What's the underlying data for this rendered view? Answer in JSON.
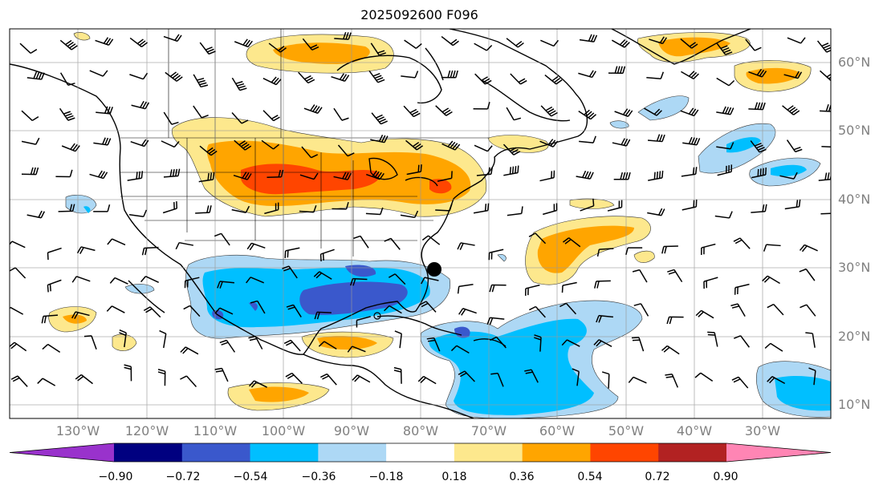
{
  "title": "2025092600 F096",
  "map": {
    "projection": "PlateCarree",
    "lon_range": [
      -142,
      -22
    ],
    "lat_range": [
      8,
      65
    ],
    "lat_labels": [
      "60°N",
      "50°N",
      "40°N",
      "30°N",
      "20°N",
      "10°N"
    ],
    "lon_labels": [
      "130°W",
      "120°W",
      "110°W",
      "100°W",
      "90°W",
      "80°W",
      "70°W",
      "60°W",
      "50°W",
      "40°W",
      "30°W"
    ],
    "storm_marker": {
      "name": "storm-center",
      "lon": -77,
      "lat": 30
    }
  },
  "colorbar": {
    "labels": [
      "−0.90",
      "−0.72",
      "−0.54",
      "−0.36",
      "−0.18",
      "0.18",
      "0.36",
      "0.54",
      "0.72",
      "0.90"
    ],
    "colors": [
      "#9932cc",
      "#000080",
      "#3a58cc",
      "#00bfff",
      "#add8f5",
      "#ffffff",
      "#fde88d",
      "#ffa500",
      "#ff4500",
      "#b22222",
      "#ff85b4"
    ]
  },
  "colors": {
    "positive_1": "#fde88d",
    "positive_2": "#ffa500",
    "positive_3": "#ff4500",
    "negative_1": "#add8f5",
    "negative_2": "#00bfff",
    "negative_3": "#3a58cc"
  }
}
